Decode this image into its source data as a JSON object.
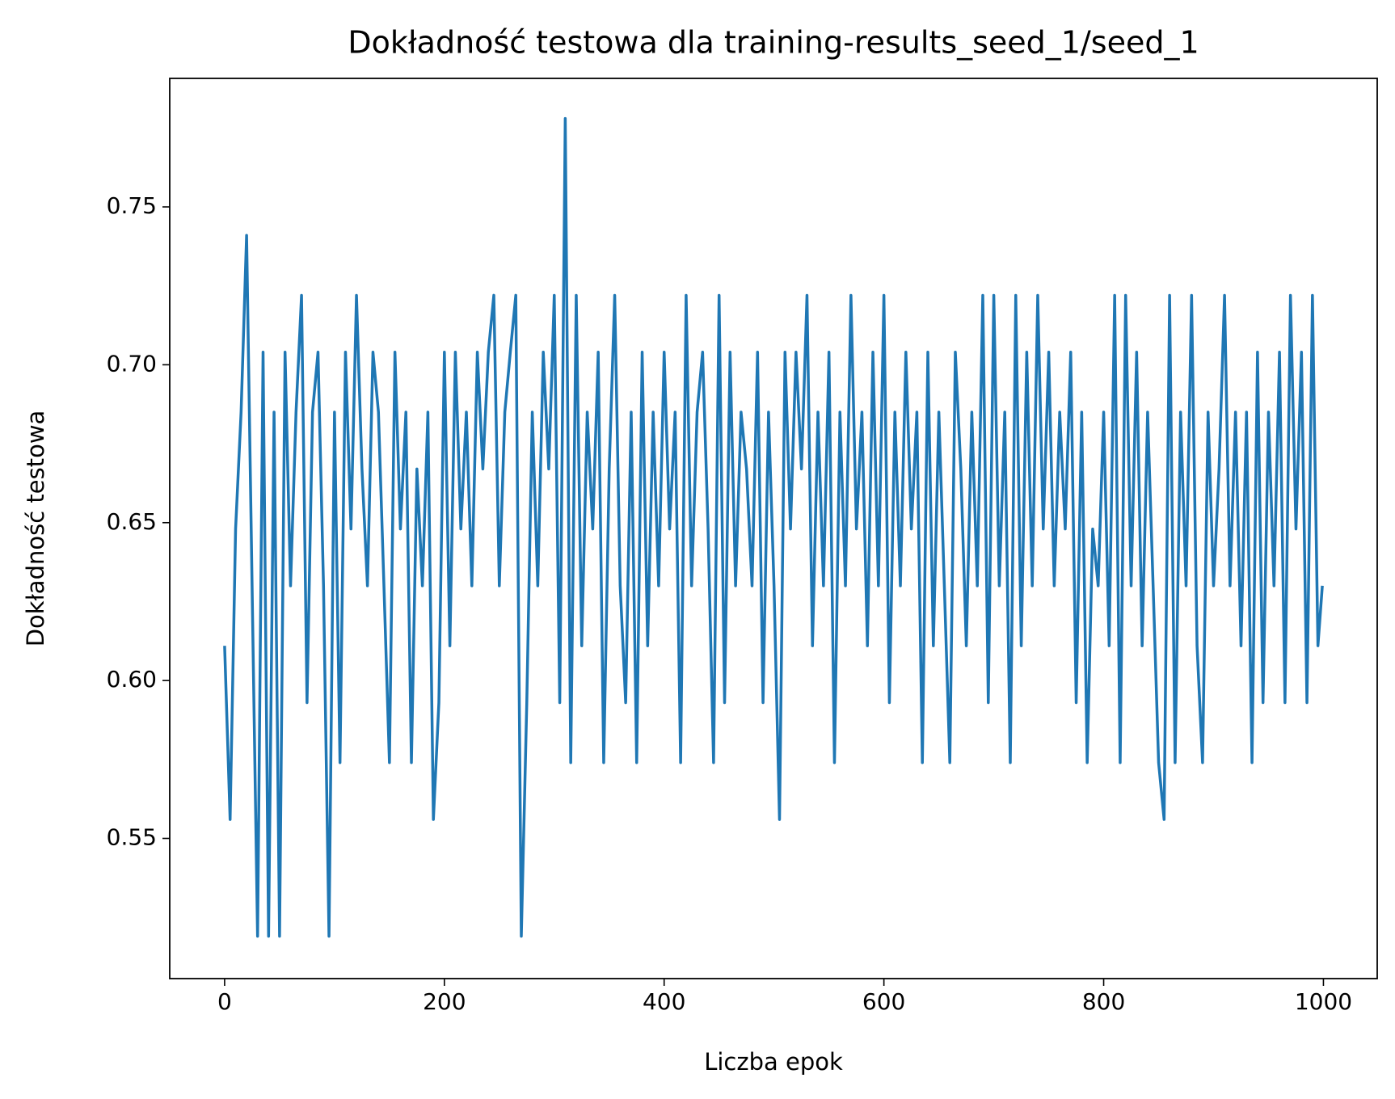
{
  "chart_data": {
    "type": "line",
    "title": "Dokładność testowa dla training-results_seed_1/seed_1",
    "x_label": "Liczba epok",
    "y_label": "Dokładność testowa",
    "xlim": [
      -49.95,
      1048.95
    ],
    "ylim": [
      0.5056,
      0.7907
    ],
    "xticks": [
      0,
      200,
      400,
      600,
      800,
      1000
    ],
    "yticks": [
      0.55,
      {
        "value": 0.6,
        "label": "0.60"
      },
      0.65,
      {
        "value": 0.7,
        "label": "0.70"
      },
      0.75
    ],
    "grid": false,
    "x": [
      0,
      5,
      10,
      15,
      20,
      25,
      30,
      35,
      40,
      45,
      50,
      55,
      60,
      65,
      70,
      75,
      80,
      85,
      90,
      95,
      100,
      105,
      110,
      115,
      120,
      125,
      130,
      135,
      140,
      145,
      150,
      155,
      160,
      165,
      170,
      175,
      180,
      185,
      190,
      195,
      200,
      205,
      210,
      215,
      220,
      225,
      230,
      235,
      240,
      245,
      250,
      255,
      260,
      265,
      270,
      275,
      280,
      285,
      290,
      295,
      300,
      305,
      310,
      315,
      320,
      325,
      330,
      335,
      340,
      345,
      350,
      355,
      360,
      365,
      370,
      375,
      380,
      385,
      390,
      395,
      400,
      405,
      410,
      415,
      420,
      425,
      430,
      435,
      440,
      445,
      450,
      455,
      460,
      465,
      470,
      475,
      480,
      485,
      490,
      495,
      500,
      505,
      510,
      515,
      520,
      525,
      530,
      535,
      540,
      545,
      550,
      555,
      560,
      565,
      570,
      575,
      580,
      585,
      590,
      595,
      600,
      605,
      610,
      615,
      620,
      625,
      630,
      635,
      640,
      645,
      650,
      655,
      660,
      665,
      670,
      675,
      680,
      685,
      690,
      695,
      700,
      705,
      710,
      715,
      720,
      725,
      730,
      735,
      740,
      745,
      750,
      755,
      760,
      765,
      770,
      775,
      780,
      785,
      790,
      795,
      800,
      805,
      810,
      815,
      820,
      825,
      830,
      835,
      840,
      845,
      850,
      855,
      860,
      865,
      870,
      875,
      880,
      885,
      890,
      895,
      900,
      905,
      910,
      915,
      920,
      925,
      930,
      935,
      940,
      945,
      950,
      955,
      960,
      965,
      970,
      975,
      980,
      985,
      990,
      995,
      999
    ],
    "series": [
      {
        "name": "Dokładność testowa",
        "color": "#1f77b4",
        "values": [
          0.611,
          0.556,
          0.648,
          0.685,
          0.741,
          0.63,
          0.519,
          0.704,
          0.519,
          0.685,
          0.519,
          0.704,
          0.63,
          0.685,
          0.722,
          0.593,
          0.685,
          0.704,
          0.63,
          0.519,
          0.685,
          0.574,
          0.704,
          0.648,
          0.722,
          0.667,
          0.63,
          0.704,
          0.685,
          0.63,
          0.574,
          0.704,
          0.648,
          0.685,
          0.574,
          0.667,
          0.63,
          0.685,
          0.556,
          0.593,
          0.704,
          0.611,
          0.704,
          0.648,
          0.685,
          0.63,
          0.704,
          0.667,
          0.704,
          0.722,
          0.63,
          0.685,
          0.704,
          0.722,
          0.519,
          0.593,
          0.685,
          0.63,
          0.704,
          0.667,
          0.722,
          0.593,
          0.778,
          0.574,
          0.722,
          0.611,
          0.685,
          0.648,
          0.704,
          0.574,
          0.667,
          0.722,
          0.63,
          0.593,
          0.685,
          0.574,
          0.704,
          0.611,
          0.685,
          0.63,
          0.704,
          0.648,
          0.685,
          0.574,
          0.722,
          0.63,
          0.685,
          0.704,
          0.648,
          0.574,
          0.722,
          0.593,
          0.704,
          0.63,
          0.685,
          0.667,
          0.63,
          0.704,
          0.593,
          0.685,
          0.63,
          0.556,
          0.704,
          0.648,
          0.704,
          0.667,
          0.722,
          0.611,
          0.685,
          0.63,
          0.704,
          0.574,
          0.685,
          0.63,
          0.722,
          0.648,
          0.685,
          0.611,
          0.704,
          0.63,
          0.722,
          0.593,
          0.685,
          0.63,
          0.704,
          0.648,
          0.685,
          0.574,
          0.704,
          0.611,
          0.685,
          0.63,
          0.574,
          0.704,
          0.667,
          0.611,
          0.685,
          0.63,
          0.722,
          0.593,
          0.722,
          0.63,
          0.685,
          0.574,
          0.722,
          0.611,
          0.704,
          0.63,
          0.722,
          0.648,
          0.704,
          0.63,
          0.685,
          0.648,
          0.704,
          0.593,
          0.685,
          0.574,
          0.648,
          0.63,
          0.685,
          0.611,
          0.722,
          0.574,
          0.722,
          0.63,
          0.704,
          0.611,
          0.685,
          0.63,
          0.574,
          0.556,
          0.722,
          0.574,
          0.685,
          0.63,
          0.722,
          0.611,
          0.574,
          0.685,
          0.63,
          0.667,
          0.722,
          0.63,
          0.685,
          0.611,
          0.685,
          0.574,
          0.704,
          0.593,
          0.685,
          0.63,
          0.704,
          0.593,
          0.722,
          0.648,
          0.704,
          0.593,
          0.722,
          0.611,
          0.63
        ]
      }
    ]
  }
}
